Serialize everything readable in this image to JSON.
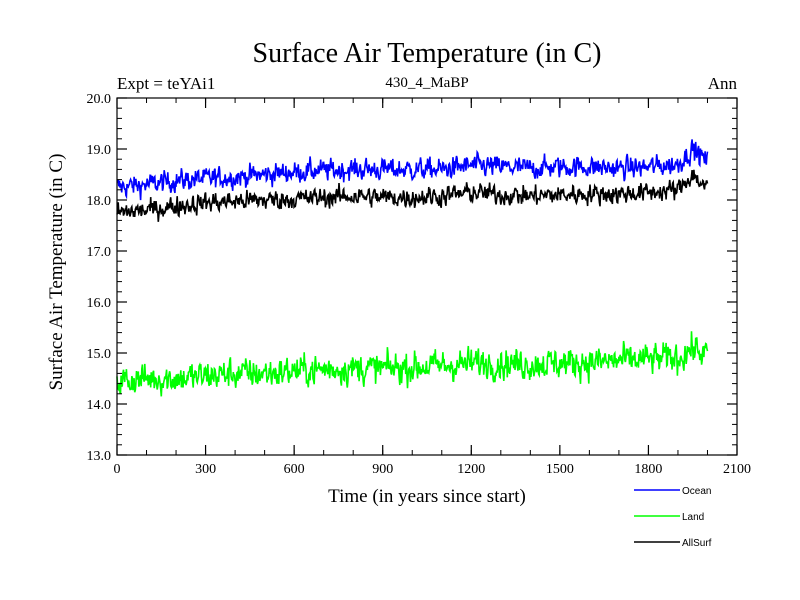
{
  "chart_data": {
    "type": "line",
    "title": "Surface Air Temperature (in C)",
    "subtitle_left": "Expt = teYAi1",
    "subtitle_center": "430_4_MaBP",
    "subtitle_right": "Ann",
    "xlabel": "Time (in years since start)",
    "ylabel": "Surface Air Temperature (in C)",
    "xlim": [
      0,
      2100
    ],
    "ylim": [
      13.0,
      20.0
    ],
    "x_ticks": [
      0,
      300,
      600,
      900,
      1200,
      1500,
      1800,
      2100
    ],
    "x_tick_labels": [
      "0",
      "300",
      "600",
      "900",
      "1200",
      "1500",
      "1800",
      "2100"
    ],
    "y_ticks": [
      13.0,
      14.0,
      15.0,
      16.0,
      17.0,
      18.0,
      19.0,
      20.0
    ],
    "y_tick_labels": [
      "13.0",
      "14.0",
      "15.0",
      "16.0",
      "17.0",
      "18.0",
      "19.0",
      "20.0"
    ],
    "x_minor_step": 100,
    "y_minor_step": 0.2,
    "grid": false,
    "legend_position": "bottom-right, below plot",
    "series": [
      {
        "name": "Ocean",
        "color": "#0000ff",
        "x": [
          0,
          100,
          200,
          300,
          400,
          500,
          600,
          700,
          800,
          900,
          1000,
          1100,
          1200,
          1300,
          1400,
          1500,
          1600,
          1700,
          1800,
          1900,
          1950,
          2000
        ],
        "values": [
          18.25,
          18.3,
          18.38,
          18.42,
          18.45,
          18.5,
          18.55,
          18.58,
          18.6,
          18.6,
          18.6,
          18.6,
          18.68,
          18.65,
          18.62,
          18.65,
          18.65,
          18.62,
          18.65,
          18.7,
          19.0,
          18.75
        ],
        "noise": 0.14
      },
      {
        "name": "Land",
        "color": "#00ff00",
        "x": [
          0,
          100,
          200,
          300,
          400,
          500,
          600,
          700,
          800,
          900,
          1000,
          1100,
          1200,
          1300,
          1400,
          1500,
          1600,
          1700,
          1800,
          1900,
          1950,
          2000
        ],
        "values": [
          14.45,
          14.5,
          14.5,
          14.55,
          14.6,
          14.6,
          14.65,
          14.68,
          14.7,
          14.7,
          14.72,
          14.75,
          14.8,
          14.8,
          14.78,
          14.8,
          14.82,
          14.85,
          14.88,
          14.9,
          15.1,
          14.95
        ],
        "noise": 0.2
      },
      {
        "name": "AllSurf",
        "color": "#000000",
        "x": [
          0,
          100,
          200,
          300,
          400,
          500,
          600,
          700,
          800,
          900,
          1000,
          1100,
          1200,
          1300,
          1400,
          1500,
          1600,
          1700,
          1800,
          1900,
          1950,
          2000
        ],
        "values": [
          17.75,
          17.8,
          17.88,
          17.95,
          17.98,
          18.0,
          18.02,
          18.05,
          18.08,
          18.05,
          18.05,
          18.08,
          18.15,
          18.1,
          18.08,
          18.1,
          18.12,
          18.12,
          18.15,
          18.2,
          18.5,
          18.2
        ],
        "noise": 0.13
      }
    ]
  }
}
